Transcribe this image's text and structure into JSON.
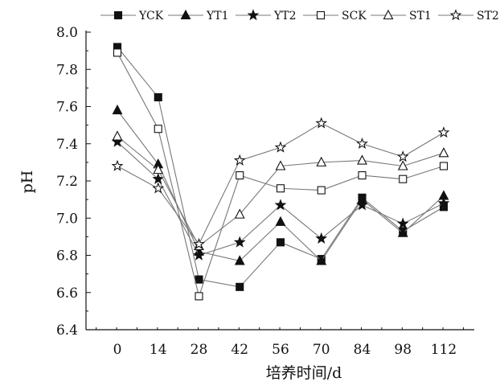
{
  "chart_data": {
    "type": "line",
    "title": "",
    "xlabel": "培养时间/d",
    "ylabel": "pH",
    "x": [
      0,
      14,
      28,
      42,
      56,
      70,
      84,
      98,
      112
    ],
    "x_tick_labels": [
      "0",
      "14",
      "28",
      "42",
      "56",
      "70",
      "84",
      "98",
      "112"
    ],
    "y_tick_labels": [
      "6.4",
      "6.6",
      "6.8",
      "7.0",
      "7.2",
      "7.4",
      "7.6",
      "7.8",
      "8.0"
    ],
    "ylim": [
      6.4,
      8.0
    ],
    "grid": false,
    "legend_position": "top",
    "series": [
      {
        "name": "YCK",
        "marker": "square-filled",
        "values": [
          7.92,
          7.65,
          6.67,
          6.63,
          6.87,
          6.78,
          7.11,
          6.93,
          7.06
        ]
      },
      {
        "name": "YT1",
        "marker": "triangle-filled",
        "values": [
          7.58,
          7.29,
          6.82,
          6.77,
          6.98,
          6.77,
          7.1,
          6.92,
          7.12
        ]
      },
      {
        "name": "YT2",
        "marker": "star-filled",
        "values": [
          7.41,
          7.21,
          6.8,
          6.87,
          7.07,
          6.89,
          7.07,
          6.97,
          7.08
        ]
      },
      {
        "name": "SCK",
        "marker": "square-open",
        "values": [
          7.89,
          7.48,
          6.58,
          7.23,
          7.16,
          7.15,
          7.23,
          7.21,
          7.28
        ]
      },
      {
        "name": "ST1",
        "marker": "triangle-open",
        "values": [
          7.44,
          7.26,
          6.85,
          7.02,
          7.28,
          7.3,
          7.31,
          7.28,
          7.35
        ]
      },
      {
        "name": "ST2",
        "marker": "star-open",
        "values": [
          7.28,
          7.16,
          6.86,
          7.31,
          7.38,
          7.51,
          7.4,
          7.33,
          7.46
        ]
      }
    ],
    "colors": {
      "line": "#777777",
      "marker": "#111111",
      "axis": "#111111"
    }
  }
}
